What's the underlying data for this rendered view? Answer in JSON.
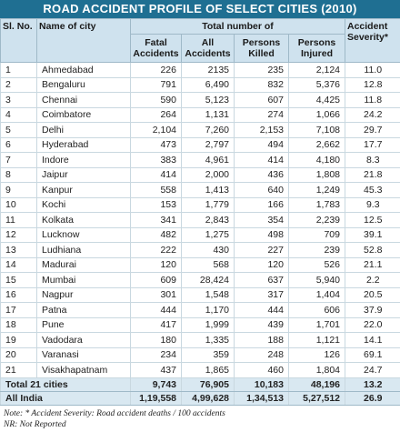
{
  "title": "ROAD ACCIDENT PROFILE OF SELECT CITIES (2010)",
  "header": {
    "sl_no": "Sl. No.",
    "city": "Name of city",
    "group": "Total number of",
    "columns": [
      "Fatal Accidents",
      "All Accidents",
      "Persons Killed",
      "Persons Injured"
    ],
    "severity": "Accident Severity*"
  },
  "rows": [
    [
      "1",
      "Ahmedabad",
      "226",
      "2135",
      "235",
      "2,124",
      "11.0"
    ],
    [
      "2",
      "Bengaluru",
      "791",
      "6,490",
      "832",
      "5,376",
      "12.8"
    ],
    [
      "3",
      "Chennai",
      "590",
      "5,123",
      "607",
      "4,425",
      "11.8"
    ],
    [
      "4",
      "Coimbatore",
      "264",
      "1,131",
      "274",
      "1,066",
      "24.2"
    ],
    [
      "5",
      "Delhi",
      "2,104",
      "7,260",
      "2,153",
      "7,108",
      "29.7"
    ],
    [
      "6",
      "Hyderabad",
      "473",
      "2,797",
      "494",
      "2,662",
      "17.7"
    ],
    [
      "7",
      "Indore",
      "383",
      "4,961",
      "414",
      "4,180",
      "8.3"
    ],
    [
      "8",
      "Jaipur",
      "414",
      "2,000",
      "436",
      "1,808",
      "21.8"
    ],
    [
      "9",
      "Kanpur",
      "558",
      "1,413",
      "640",
      "1,249",
      "45.3"
    ],
    [
      "10",
      "Kochi",
      "153",
      "1,779",
      "166",
      "1,783",
      "9.3"
    ],
    [
      "11",
      "Kolkata",
      "341",
      "2,843",
      "354",
      "2,239",
      "12.5"
    ],
    [
      "12",
      "Lucknow",
      "482",
      "1,275",
      "498",
      "709",
      "39.1"
    ],
    [
      "13",
      "Ludhiana",
      "222",
      "430",
      "227",
      "239",
      "52.8"
    ],
    [
      "14",
      "Madurai",
      "120",
      "568",
      "120",
      "526",
      "21.1"
    ],
    [
      "15",
      "Mumbai",
      "609",
      "28,424",
      "637",
      "5,940",
      "2.2"
    ],
    [
      "16",
      "Nagpur",
      "301",
      "1,548",
      "317",
      "1,404",
      "20.5"
    ],
    [
      "17",
      "Patna",
      "444",
      "1,170",
      "444",
      "606",
      "37.9"
    ],
    [
      "18",
      "Pune",
      "417",
      "1,999",
      "439",
      "1,701",
      "22.0"
    ],
    [
      "19",
      "Vadodara",
      "180",
      "1,335",
      "188",
      "1,121",
      "14.1"
    ],
    [
      "20",
      "Varanasi",
      "234",
      "359",
      "248",
      "126",
      "69.1"
    ],
    [
      "21",
      "Visakhapatnam",
      "437",
      "1,865",
      "460",
      "1,804",
      "24.7"
    ]
  ],
  "summary_rows": [
    [
      "Total 21 cities",
      "9,743",
      "76,905",
      "10,183",
      "48,196",
      "13.2"
    ],
    [
      "All India",
      "1,19,558",
      "4,99,628",
      "1,34,513",
      "5,27,512",
      "26.9"
    ]
  ],
  "notes": [
    "Note: * Accident Severity: Road accident deaths / 100 accidents",
    "NR: Not Reported"
  ]
}
